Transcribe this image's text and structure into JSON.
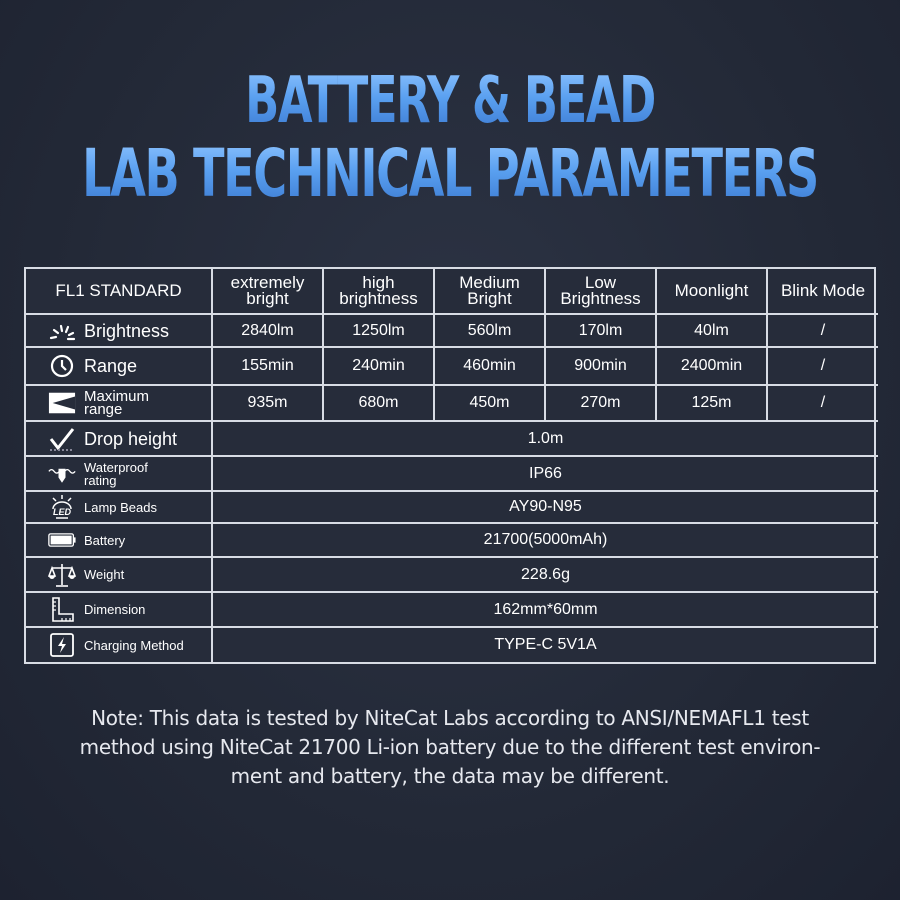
{
  "title": {
    "line1": "BATTERY & BEAD",
    "line2": "LAB TECHNICAL PARAMETERS",
    "color": "#5aa0f0"
  },
  "table": {
    "header": [
      "FL1 STANDARD",
      [
        "extremely",
        "bright"
      ],
      [
        "high",
        "brightness"
      ],
      [
        "Medium",
        "Bright"
      ],
      [
        "Low",
        "Brightness"
      ],
      "Moonlight",
      "Blink Mode"
    ],
    "rows": [
      {
        "icon": "brightness-icon",
        "label": [
          "Brightness"
        ],
        "values": [
          "2840lm",
          "1250lm",
          "560lm",
          "170lm",
          "40lm",
          "/"
        ]
      },
      {
        "icon": "clock-icon",
        "label": [
          "Range"
        ],
        "values": [
          "155min",
          "240min",
          "460min",
          "900min",
          "2400min",
          "/"
        ]
      },
      {
        "icon": "beam-distance-icon",
        "label": [
          "Maximum",
          "range"
        ],
        "values": [
          "935m",
          "680m",
          "450m",
          "270m",
          "125m",
          "/"
        ]
      },
      {
        "icon": "drop-icon",
        "label": [
          "Drop height"
        ],
        "value": "1.0m"
      },
      {
        "icon": "waterproof-icon",
        "label": [
          "Waterproof",
          "rating"
        ],
        "value": "IP66"
      },
      {
        "icon": "led-icon",
        "label": [
          "Lamp Beads"
        ],
        "value": "AY90-N95"
      },
      {
        "icon": "battery-icon",
        "label": [
          "Battery"
        ],
        "value": "21700(5000mAh)"
      },
      {
        "icon": "scale-icon",
        "label": [
          "Weight"
        ],
        "value": "228.6g"
      },
      {
        "icon": "ruler-icon",
        "label": [
          "Dimension"
        ],
        "value": "162mm*60mm"
      },
      {
        "icon": "charging-icon",
        "label": [
          "Charging Method"
        ],
        "value": "TYPE-C 5V1A"
      }
    ]
  },
  "note": [
    "Note: This data is tested by NiteCat Labs according to ANSI/NEMAFL1 test",
    "method using NiteCat 21700 Li-ion battery due to the different test environ-",
    "ment and battery, the data may be different."
  ]
}
